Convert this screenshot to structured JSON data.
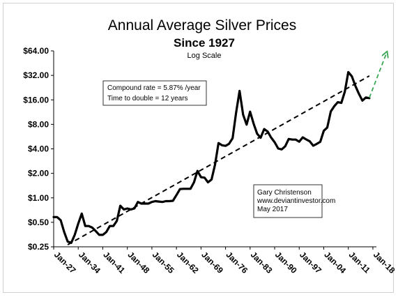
{
  "chart_data": {
    "type": "line",
    "title": "Annual Average Silver Prices",
    "subtitle": "Since 1927",
    "scale_note": "Log Scale",
    "y_scale": "log2",
    "ylim": [
      0.25,
      64
    ],
    "y_ticks": [
      "$0.25",
      "$0.50",
      "$1.00",
      "$2.00",
      "$4.00",
      "$8.00",
      "$16.00",
      "$32.00",
      "$64.00"
    ],
    "y_tick_values": [
      0.25,
      0.5,
      1,
      2,
      4,
      8,
      16,
      32,
      64
    ],
    "x_range": [
      1927,
      2019
    ],
    "x_ticks": [
      "Jan-27",
      "Jan-34",
      "Jan-41",
      "Jan-48",
      "Jan-55",
      "Jan-62",
      "Jan-69",
      "Jan-76",
      "Jan-83",
      "Jan-90",
      "Jan-97",
      "Jan-04",
      "Jan-11",
      "Jan-18"
    ],
    "x_tick_years": [
      1927,
      1934,
      1941,
      1948,
      1955,
      1962,
      1969,
      1976,
      1983,
      1990,
      1997,
      2004,
      2011,
      2018
    ],
    "grid": false,
    "series": [
      {
        "role": "price",
        "color": "#000000",
        "points": [
          [
            1927,
            0.58
          ],
          [
            1928,
            0.58
          ],
          [
            1929,
            0.53
          ],
          [
            1930,
            0.38
          ],
          [
            1931,
            0.29
          ],
          [
            1932,
            0.28
          ],
          [
            1933,
            0.35
          ],
          [
            1934,
            0.48
          ],
          [
            1935,
            0.64
          ],
          [
            1936,
            0.45
          ],
          [
            1937,
            0.45
          ],
          [
            1938,
            0.43
          ],
          [
            1939,
            0.39
          ],
          [
            1940,
            0.35
          ],
          [
            1941,
            0.35
          ],
          [
            1942,
            0.38
          ],
          [
            1943,
            0.45
          ],
          [
            1944,
            0.45
          ],
          [
            1945,
            0.52
          ],
          [
            1946,
            0.8
          ],
          [
            1947,
            0.72
          ],
          [
            1948,
            0.74
          ],
          [
            1949,
            0.72
          ],
          [
            1950,
            0.74
          ],
          [
            1951,
            0.89
          ],
          [
            1952,
            0.85
          ],
          [
            1953,
            0.85
          ],
          [
            1954,
            0.85
          ],
          [
            1955,
            0.89
          ],
          [
            1956,
            0.91
          ],
          [
            1957,
            0.9
          ],
          [
            1958,
            0.89
          ],
          [
            1959,
            0.91
          ],
          [
            1960,
            0.91
          ],
          [
            1961,
            0.92
          ],
          [
            1962,
            1.08
          ],
          [
            1963,
            1.28
          ],
          [
            1964,
            1.29
          ],
          [
            1965,
            1.29
          ],
          [
            1966,
            1.29
          ],
          [
            1967,
            1.55
          ],
          [
            1968,
            2.14
          ],
          [
            1969,
            1.79
          ],
          [
            1970,
            1.77
          ],
          [
            1971,
            1.55
          ],
          [
            1972,
            1.68
          ],
          [
            1973,
            2.56
          ],
          [
            1974,
            4.71
          ],
          [
            1975,
            4.42
          ],
          [
            1976,
            4.35
          ],
          [
            1977,
            4.62
          ],
          [
            1978,
            5.4
          ],
          [
            1979,
            11.09
          ],
          [
            1980,
            20.63
          ],
          [
            1981,
            10.52
          ],
          [
            1982,
            7.95
          ],
          [
            1983,
            11.44
          ],
          [
            1984,
            8.14
          ],
          [
            1985,
            6.14
          ],
          [
            1986,
            5.47
          ],
          [
            1987,
            7.01
          ],
          [
            1988,
            6.53
          ],
          [
            1989,
            5.5
          ],
          [
            1990,
            4.82
          ],
          [
            1991,
            4.04
          ],
          [
            1992,
            3.94
          ],
          [
            1993,
            4.3
          ],
          [
            1994,
            5.29
          ],
          [
            1995,
            5.2
          ],
          [
            1996,
            5.2
          ],
          [
            1997,
            4.9
          ],
          [
            1998,
            5.54
          ],
          [
            1999,
            5.22
          ],
          [
            2000,
            4.95
          ],
          [
            2001,
            4.37
          ],
          [
            2002,
            4.6
          ],
          [
            2003,
            4.88
          ],
          [
            2004,
            6.67
          ],
          [
            2005,
            7.32
          ],
          [
            2006,
            11.55
          ],
          [
            2007,
            13.38
          ],
          [
            2008,
            14.99
          ],
          [
            2009,
            14.67
          ],
          [
            2010,
            20.19
          ],
          [
            2011,
            35.12
          ],
          [
            2012,
            31.15
          ],
          [
            2013,
            23.79
          ],
          [
            2014,
            19.08
          ],
          [
            2015,
            15.68
          ],
          [
            2016,
            17.14
          ],
          [
            2017,
            16.8
          ]
        ]
      },
      {
        "role": "trend",
        "color": "#000000",
        "dashed": true,
        "points": [
          [
            1931,
            0.265
          ],
          [
            2017,
            31.5
          ]
        ]
      },
      {
        "role": "projection",
        "color": "#3aa655",
        "dashed": true,
        "arrow": true,
        "points": [
          [
            2017,
            17.0
          ],
          [
            2022,
            62.0
          ]
        ]
      }
    ]
  },
  "annotations": {
    "compound_rate": "Compound rate = 5.87% /year",
    "time_to_double": "Time to double = 12 years",
    "source_name": "Gary Christenson",
    "source_site": "www.deviantinvestor.com",
    "source_date": "May 2017"
  }
}
